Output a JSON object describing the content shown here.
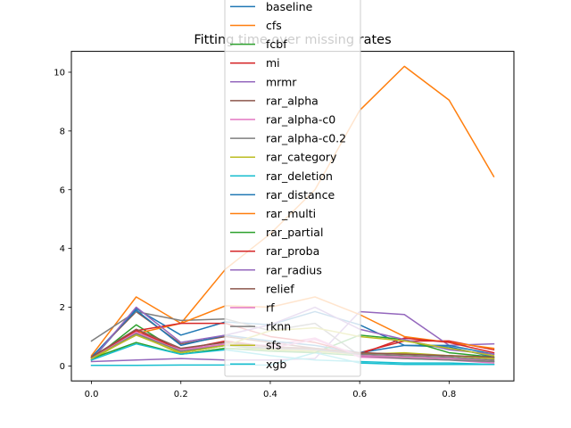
{
  "chart_data": {
    "type": "line",
    "title": "Fitting time over missing rates",
    "xlabel": "",
    "ylabel": "",
    "xlim": [
      -0.045,
      0.945
    ],
    "ylim": [
      -0.51,
      10.71
    ],
    "x": [
      0.0,
      0.1,
      0.2,
      0.3,
      0.4,
      0.5,
      0.6,
      0.7,
      0.8,
      0.9
    ],
    "x_ticks": [
      0.0,
      0.2,
      0.4,
      0.6,
      0.8
    ],
    "x_tick_labels": [
      "0.0",
      "0.2",
      "0.4",
      "0.6",
      "0.8"
    ],
    "y_ticks": [
      0,
      2,
      4,
      6,
      8,
      10
    ],
    "y_tick_labels": [
      "0",
      "2",
      "4",
      "6",
      "8",
      "10"
    ],
    "grid": false,
    "legend_position": "upper-center",
    "series": [
      {
        "name": "baseline",
        "color": "#1f77b4",
        "values": [
          0.2,
          1.95,
          1.05,
          1.5,
          1.4,
          1.85,
          1.4,
          0.7,
          0.65,
          0.3
        ]
      },
      {
        "name": "cfs",
        "color": "#ff7f0e",
        "values": [
          0.35,
          2.35,
          1.45,
          3.3,
          4.5,
          6.0,
          8.7,
          10.2,
          9.05,
          6.45
        ]
      },
      {
        "name": "fcbf",
        "color": "#2ca02c",
        "values": [
          0.2,
          1.4,
          0.45,
          0.7,
          0.55,
          0.45,
          0.35,
          0.3,
          0.25,
          0.15
        ]
      },
      {
        "name": "mi",
        "color": "#d62728",
        "values": [
          0.25,
          1.2,
          0.55,
          0.85,
          0.65,
          0.55,
          0.45,
          0.85,
          0.85,
          0.55
        ]
      },
      {
        "name": "mrmr",
        "color": "#9467bd",
        "values": [
          0.15,
          0.2,
          0.25,
          0.2,
          0.2,
          0.25,
          1.85,
          1.75,
          0.7,
          0.75
        ]
      },
      {
        "name": "rar_alpha",
        "color": "#8c564b",
        "values": [
          0.3,
          1.85,
          0.75,
          1.0,
          0.8,
          0.6,
          0.45,
          0.4,
          0.35,
          0.25
        ]
      },
      {
        "name": "rar_alpha-c0",
        "color": "#e377c2",
        "values": [
          0.25,
          1.05,
          0.55,
          0.75,
          0.7,
          0.95,
          0.3,
          0.25,
          0.2,
          0.1
        ]
      },
      {
        "name": "rar_alpha-c0.2",
        "color": "#7f7f7f",
        "values": [
          0.85,
          1.85,
          1.55,
          1.6,
          1.2,
          1.45,
          0.35,
          0.25,
          0.2,
          0.15
        ]
      },
      {
        "name": "rar_category",
        "color": "#bcbd22",
        "values": [
          0.2,
          1.1,
          0.4,
          0.6,
          0.55,
          0.5,
          0.4,
          0.45,
          0.35,
          0.25
        ]
      },
      {
        "name": "rar_deletion",
        "color": "#17becf",
        "values": [
          0.02,
          0.02,
          0.03,
          0.03,
          0.03,
          0.45,
          0.1,
          0.05,
          0.05,
          0.05
        ]
      },
      {
        "name": "rar_distance",
        "color": "#1f77b4",
        "values": [
          0.3,
          1.9,
          0.7,
          1.05,
          0.85,
          0.7,
          0.45,
          0.7,
          0.7,
          0.4
        ]
      },
      {
        "name": "rar_multi",
        "color": "#ff7f0e",
        "values": [
          0.3,
          1.1,
          1.45,
          2.05,
          2.0,
          2.35,
          1.75,
          1.0,
          0.8,
          0.6
        ]
      },
      {
        "name": "rar_partial",
        "color": "#2ca02c",
        "values": [
          0.25,
          0.8,
          0.4,
          0.6,
          0.5,
          0.45,
          1.05,
          0.9,
          0.45,
          0.3
        ]
      },
      {
        "name": "rar_proba",
        "color": "#d62728",
        "values": [
          0.3,
          1.2,
          1.45,
          1.45,
          1.0,
          0.8,
          0.4,
          0.95,
          0.8,
          0.45
        ]
      },
      {
        "name": "rar_radius",
        "color": "#9467bd",
        "values": [
          0.2,
          2.0,
          0.8,
          1.05,
          1.4,
          2.0,
          1.25,
          0.9,
          0.55,
          0.4
        ]
      },
      {
        "name": "relief",
        "color": "#8c564b",
        "values": [
          0.3,
          1.25,
          0.6,
          0.8,
          0.65,
          0.6,
          0.45,
          0.4,
          0.35,
          0.3
        ]
      },
      {
        "name": "rf",
        "color": "#e377c2",
        "values": [
          0.25,
          1.15,
          0.5,
          0.75,
          0.6,
          0.9,
          0.35,
          0.3,
          0.25,
          0.2
        ]
      },
      {
        "name": "rknn",
        "color": "#7f7f7f",
        "values": [
          0.25,
          1.1,
          0.5,
          0.7,
          0.6,
          0.55,
          0.4,
          0.35,
          0.3,
          0.2
        ]
      },
      {
        "name": "sfs",
        "color": "#bcbd22",
        "values": [
          0.25,
          1.05,
          0.45,
          0.7,
          1.2,
          1.3,
          1.0,
          0.85,
          0.6,
          0.35
        ]
      },
      {
        "name": "xgb",
        "color": "#17becf",
        "values": [
          0.2,
          0.75,
          0.4,
          0.55,
          0.35,
          0.2,
          0.15,
          0.1,
          0.1,
          0.05
        ]
      }
    ]
  }
}
